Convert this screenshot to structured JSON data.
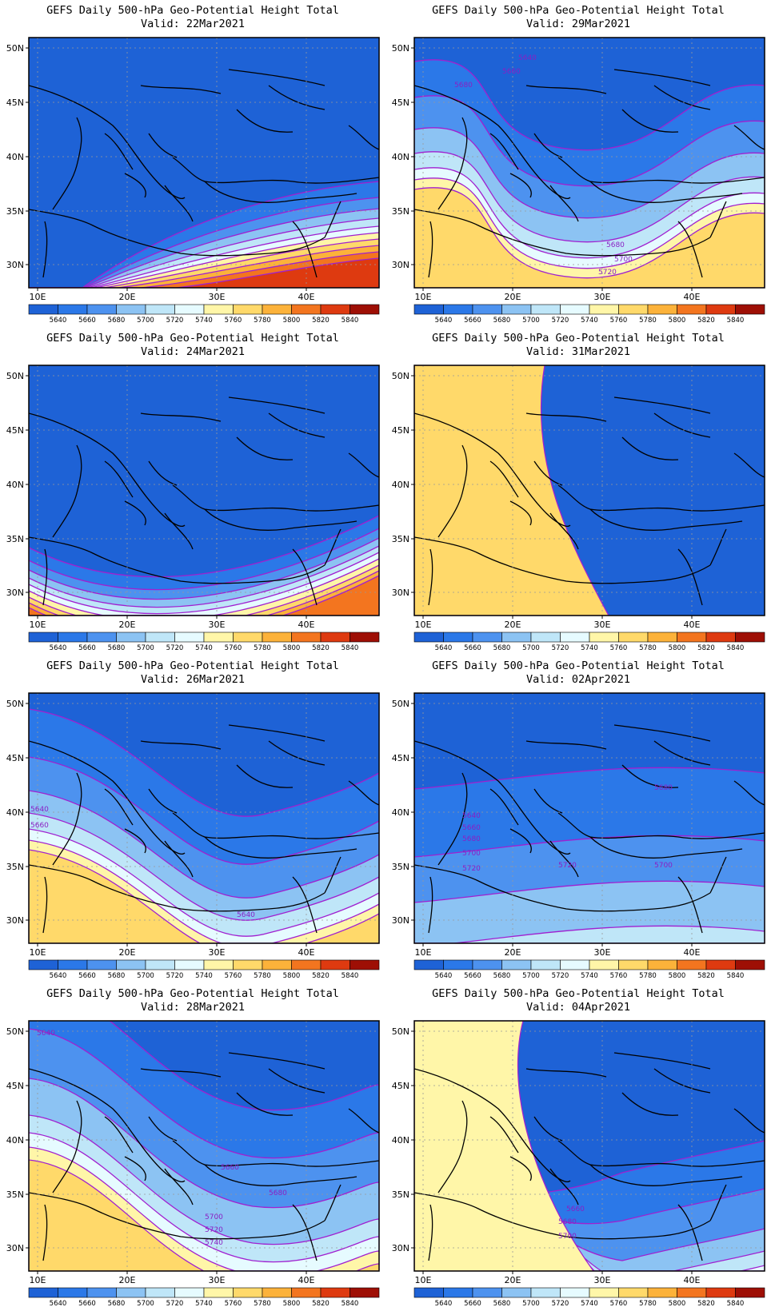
{
  "colorbar": {
    "labels": [
      "5640",
      "5660",
      "5680",
      "5700",
      "5720",
      "5740",
      "5760",
      "5780",
      "5800",
      "5820",
      "5840"
    ],
    "colors": [
      "#1e62d6",
      "#2b78e8",
      "#4d92ef",
      "#8cc3f3",
      "#bfe6f8",
      "#e6fbff",
      "#fff6a8",
      "#ffd96a",
      "#fcb23a",
      "#f3751f",
      "#de3a10",
      "#9e0f05"
    ]
  },
  "axes": {
    "lat_labels": [
      "50N",
      "45N",
      "40N",
      "35N",
      "30N"
    ],
    "lon_labels": [
      "10E",
      "20E",
      "30E",
      "40E"
    ]
  },
  "panels": [
    {
      "title": "GEFS Daily 500-hPa Geo-Potential Height Total",
      "valid": "Valid: 22Mar2021",
      "bands": [
        {
          "c": 1,
          "b": 250
        },
        {
          "c": 2,
          "b": 270
        },
        {
          "c": 3,
          "b": 284
        },
        {
          "c": 4,
          "b": 296
        },
        {
          "c": 5,
          "b": 306
        },
        {
          "c": 6,
          "b": 314
        },
        {
          "c": 7,
          "b": 322
        },
        {
          "c": 8,
          "b": 330
        },
        {
          "c": 9,
          "b": 338
        },
        {
          "c": 10,
          "b": 346
        }
      ],
      "contour_labels": []
    },
    {
      "title": "GEFS Daily 500-hPa Geo-Potential Height Total",
      "valid": "Valid: 29Mar2021",
      "bands": [
        {
          "c": 1,
          "b": 170
        },
        {
          "c": 2,
          "b": 215
        },
        {
          "c": 3,
          "b": 255
        },
        {
          "c": 4,
          "b": 285
        },
        {
          "c": 5,
          "b": 305
        },
        {
          "c": 6,
          "b": 318
        },
        {
          "c": 7,
          "b": 330
        }
      ],
      "contour_labels": [
        "5640",
        "5660",
        "5680",
        "5680",
        "5700",
        "5720"
      ]
    },
    {
      "title": "GEFS Daily 500-hPa Geo-Potential Height Total",
      "valid": "Valid: 24Mar2021",
      "bands": [
        {
          "c": 1,
          "b": 268
        },
        {
          "c": 2,
          "b": 284
        },
        {
          "c": 3,
          "b": 296
        },
        {
          "c": 4,
          "b": 306
        },
        {
          "c": 5,
          "b": 314
        },
        {
          "c": 6,
          "b": 322
        },
        {
          "c": 7,
          "b": 330
        },
        {
          "c": 8,
          "b": 337
        },
        {
          "c": 9,
          "b": 343
        }
      ],
      "contour_labels": []
    },
    {
      "title": "GEFS Daily 500-hPa Geo-Potential Height Total",
      "valid": "Valid: 31Mar2021",
      "bands": [
        {
          "c": 1,
          "b": 250
        },
        {
          "c": 2,
          "b": 278
        },
        {
          "c": 3,
          "b": 296
        },
        {
          "c": 4,
          "b": 310
        },
        {
          "c": 5,
          "b": 322
        },
        {
          "c": 6,
          "b": 333
        },
        {
          "c": 7,
          "b": 343
        }
      ],
      "contour_labels": []
    },
    {
      "title": "GEFS Daily 500-hPa Geo-Potential Height Total",
      "valid": "Valid: 26Mar2021",
      "bands": [
        {
          "c": 1,
          "b": 160
        },
        {
          "c": 2,
          "b": 220
        },
        {
          "c": 3,
          "b": 262
        },
        {
          "c": 4,
          "b": 290
        },
        {
          "c": 5,
          "b": 310
        },
        {
          "c": 6,
          "b": 324
        },
        {
          "c": 7,
          "b": 336
        }
      ],
      "contour_labels": [
        "5640",
        "5660",
        "5640"
      ]
    },
    {
      "title": "GEFS Daily 500-hPa Geo-Potential Height Total",
      "valid": "Valid: 02Apr2021",
      "bands": [
        {
          "c": 1,
          "b": 120
        },
        {
          "c": 2,
          "b": 205
        },
        {
          "c": 3,
          "b": 262
        },
        {
          "c": 4,
          "b": 318
        },
        {
          "c": 5,
          "b": 345
        }
      ],
      "contour_labels": [
        "5680",
        "5640",
        "5660",
        "5680",
        "5700",
        "5720",
        "5720",
        "5700"
      ]
    },
    {
      "title": "GEFS Daily 500-hPa Geo-Potential Height Total",
      "valid": "Valid: 28Mar2021",
      "bands": [
        {
          "c": 1,
          "b": 110
        },
        {
          "c": 2,
          "b": 170
        },
        {
          "c": 3,
          "b": 232
        },
        {
          "c": 4,
          "b": 278
        },
        {
          "c": 5,
          "b": 300
        },
        {
          "c": 6,
          "b": 318
        },
        {
          "c": 7,
          "b": 334
        }
      ],
      "contour_labels": [
        "5640",
        "5660",
        "5680",
        "5700",
        "5720",
        "5740"
      ]
    },
    {
      "title": "GEFS Daily 500-hPa Geo-Potential Height Total",
      "valid": "Valid: 04Apr2021",
      "bands": [
        {
          "c": 1,
          "b": 180
        },
        {
          "c": 2,
          "b": 240
        },
        {
          "c": 3,
          "b": 290
        },
        {
          "c": 4,
          "b": 318
        },
        {
          "c": 5,
          "b": 336
        },
        {
          "c": 6,
          "b": 346
        }
      ],
      "contour_labels": [
        "5660",
        "5680",
        "5700"
      ]
    }
  ]
}
